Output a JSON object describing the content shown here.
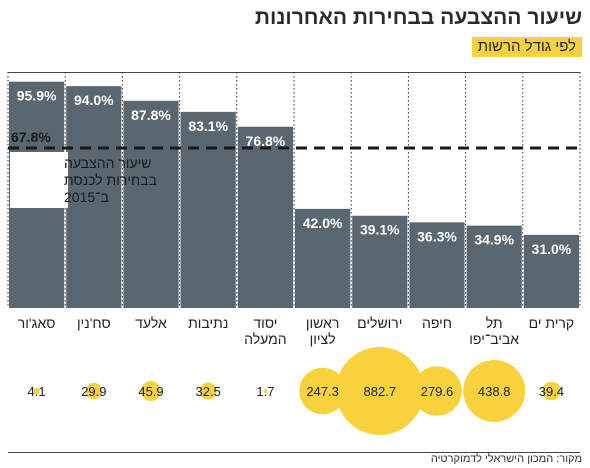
{
  "header": {
    "title": "שיעור ההצבעה בבחירות האחרונות",
    "subtitle": "לפי גודל הרשות"
  },
  "reference": {
    "value": 67.8,
    "value_label": "67.8%",
    "label_lines": [
      "שיעור ההצבעה",
      "בבחירות לכנסת",
      "ב־2015"
    ]
  },
  "footer": {
    "source": "מקור: המכון הישראלי לדמוקרטיה"
  },
  "colors": {
    "bar": "#5a6770",
    "bubble": "#f7d23d",
    "reference_line": "#1a1a1a"
  },
  "chart_data": {
    "type": "bar",
    "ylim": [
      0,
      100
    ],
    "categories": [
      [
        "קרית ים"
      ],
      [
        "תל",
        "אביב־יפו"
      ],
      [
        "חיפה"
      ],
      [
        "ירושלים"
      ],
      [
        "ראשון",
        "לציון"
      ],
      [
        "יסוד",
        "המעלה"
      ],
      [
        "נתיבות"
      ],
      [
        "אלעד"
      ],
      [
        "סח'נין"
      ],
      [
        "סאג'ור"
      ]
    ],
    "values": [
      31.0,
      34.9,
      36.3,
      39.1,
      42.0,
      76.8,
      83.1,
      87.8,
      94.0,
      95.9
    ],
    "value_labels": [
      "31.0%",
      "34.9%",
      "36.3%",
      "39.1%",
      "42.0%",
      "76.8%",
      "83.1%",
      "87.8%",
      "94.0%",
      "95.9%"
    ],
    "bubble_values": [
      39.4,
      438.8,
      279.6,
      882.7,
      247.3,
      1.7,
      32.5,
      45.9,
      29.9,
      4.1
    ],
    "bubble_labels": [
      "39.4",
      "438.8",
      "279.6",
      "882.7",
      "247.3",
      "1.7",
      "32.5",
      "45.9",
      "29.9",
      "4.1"
    ],
    "reference_line": 67.8,
    "grid": false
  }
}
